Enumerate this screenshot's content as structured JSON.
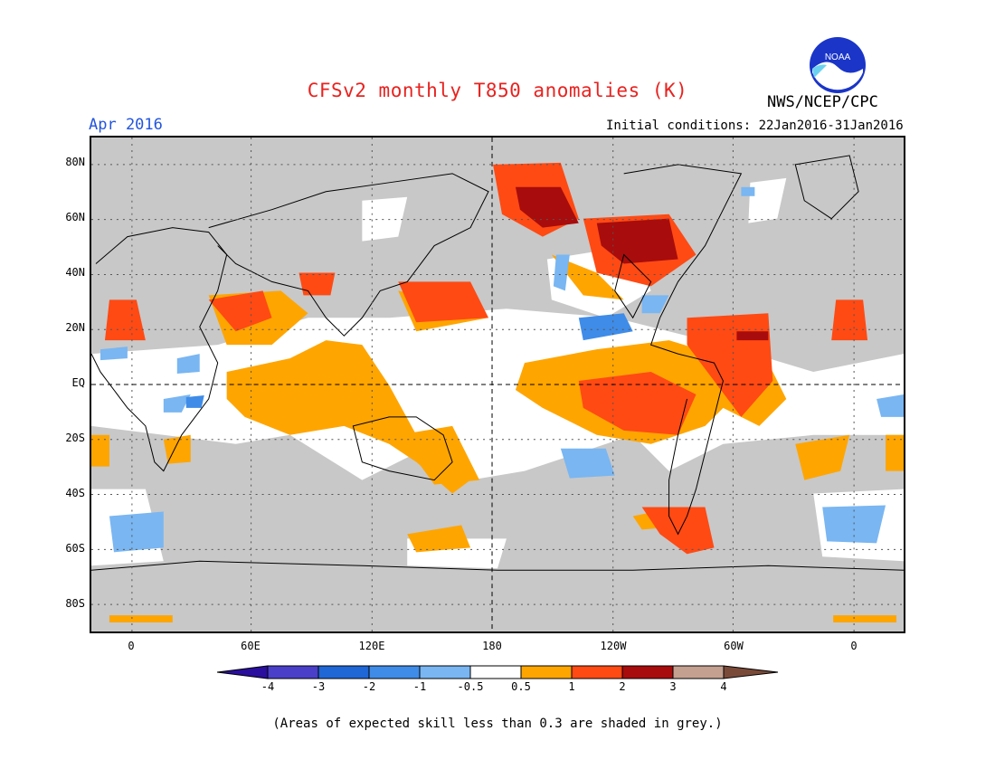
{
  "title": "CFSv2 monthly T850 anomalies (K)",
  "valid_month": "Apr 2016",
  "initial_conditions": "Initial conditions: 22Jan2016-31Jan2016",
  "agency": "NWS/NCEP/CPC",
  "logo_text": "NOAA",
  "lat_labels": [
    "80N",
    "60N",
    "40N",
    "20N",
    "EQ",
    "20S",
    "40S",
    "60S",
    "80S"
  ],
  "lon_labels": [
    "0",
    "60E",
    "120E",
    "180",
    "120W",
    "60W",
    "0"
  ],
  "colorbar": {
    "ticks": [
      "-4",
      "-3",
      "-2",
      "-1",
      "-0.5",
      "0.5",
      "1",
      "2",
      "3",
      "4"
    ],
    "colors": [
      "#2a0f9e",
      "#4a3fc9",
      "#1f66d6",
      "#3f8ce8",
      "#79b6f2",
      "#ffffff",
      "#ffa500",
      "#ff4a14",
      "#a80c0c",
      "#c4a090",
      "#7a4a38"
    ]
  },
  "grey_color": "#c8c8c8",
  "footnote": "(Areas of expected skill less than 0.3 are shaded in grey.)"
}
